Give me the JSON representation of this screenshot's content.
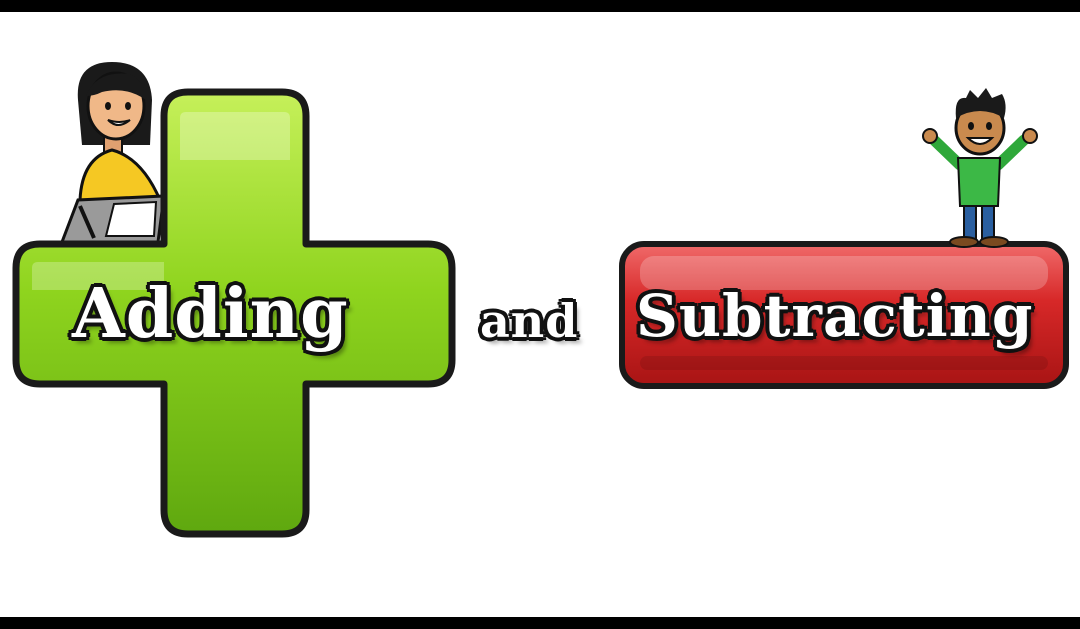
{
  "title": {
    "adding": "Adding",
    "and": "and",
    "subtracting": "Subtracting"
  },
  "colors": {
    "plus_green": "#8fd41e",
    "minus_red": "#d72828",
    "outline": "#1a1a1a",
    "background": "#ffffff",
    "letterbox": "#000000"
  },
  "icons": [
    "plus-sign-icon",
    "minus-sign-icon",
    "girl-with-clipboard-icon",
    "boy-waving-icon"
  ]
}
